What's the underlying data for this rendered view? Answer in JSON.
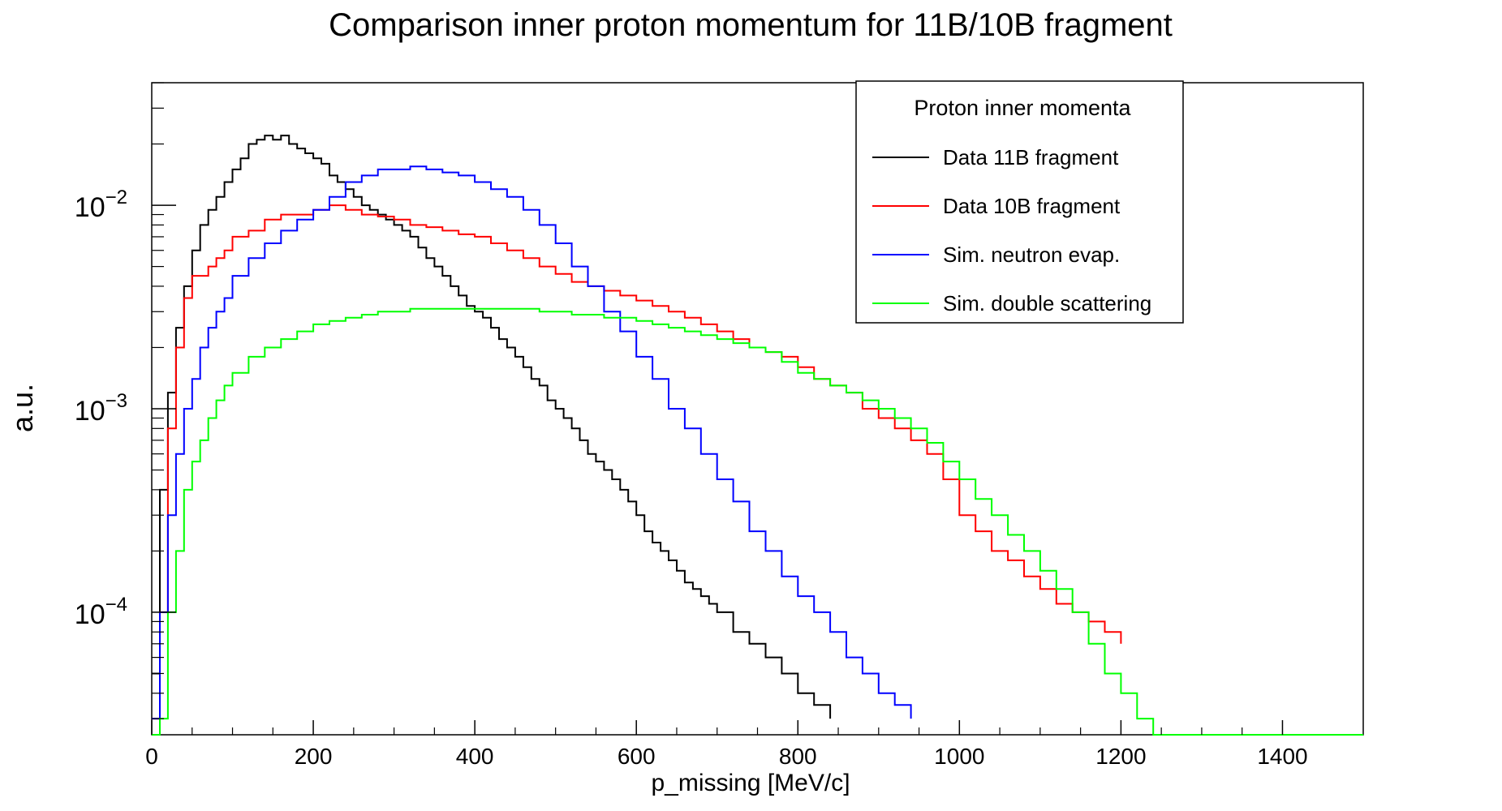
{
  "chart_data": {
    "type": "line",
    "title": "Comparison inner proton momentum for 11B/10B fragment",
    "xlabel": "p_missing [MeV/c]",
    "ylabel": "a.u.",
    "xlim": [
      0,
      1500
    ],
    "ylim": [
      2.5e-05,
      0.04
    ],
    "yscale": "log",
    "x_ticks": [
      0,
      200,
      400,
      600,
      800,
      1000,
      1200,
      1400
    ],
    "x_tick_labels": [
      "0",
      "200",
      "400",
      "600",
      "800",
      "1000",
      "1200",
      "1400"
    ],
    "y_ticks": [
      {
        "value": 0.01,
        "base": "10",
        "exp": "−2"
      },
      {
        "value": 0.001,
        "base": "10",
        "exp": "−3"
      },
      {
        "value": 0.0001,
        "base": "10",
        "exp": "−4"
      }
    ],
    "legend": {
      "title": "Proton inner momenta",
      "position": "top-right"
    },
    "series": [
      {
        "name": "Data 11B fragment",
        "color": "#000000",
        "points": [
          [
            0,
            5e-05
          ],
          [
            10,
            0.0004
          ],
          [
            20,
            0.0012
          ],
          [
            30,
            0.0025
          ],
          [
            40,
            0.004
          ],
          [
            50,
            0.006
          ],
          [
            60,
            0.008
          ],
          [
            70,
            0.0095
          ],
          [
            80,
            0.011
          ],
          [
            90,
            0.013
          ],
          [
            100,
            0.015
          ],
          [
            110,
            0.017
          ],
          [
            120,
            0.02
          ],
          [
            130,
            0.021
          ],
          [
            140,
            0.022
          ],
          [
            150,
            0.021
          ],
          [
            160,
            0.022
          ],
          [
            170,
            0.02
          ],
          [
            180,
            0.019
          ],
          [
            190,
            0.018
          ],
          [
            200,
            0.017
          ],
          [
            210,
            0.016
          ],
          [
            220,
            0.014
          ],
          [
            230,
            0.013
          ],
          [
            240,
            0.012
          ],
          [
            250,
            0.011
          ],
          [
            260,
            0.01
          ],
          [
            270,
            0.0095
          ],
          [
            280,
            0.009
          ],
          [
            290,
            0.0085
          ],
          [
            300,
            0.008
          ],
          [
            310,
            0.0075
          ],
          [
            320,
            0.007
          ],
          [
            330,
            0.0062
          ],
          [
            340,
            0.0055
          ],
          [
            350,
            0.005
          ],
          [
            360,
            0.0045
          ],
          [
            370,
            0.004
          ],
          [
            380,
            0.0036
          ],
          [
            390,
            0.0032
          ],
          [
            400,
            0.003
          ],
          [
            410,
            0.0028
          ],
          [
            420,
            0.0025
          ],
          [
            430,
            0.0022
          ],
          [
            440,
            0.002
          ],
          [
            450,
            0.0018
          ],
          [
            460,
            0.0016
          ],
          [
            470,
            0.0014
          ],
          [
            480,
            0.0013
          ],
          [
            490,
            0.0011
          ],
          [
            500,
            0.001
          ],
          [
            510,
            0.0009
          ],
          [
            520,
            0.0008
          ],
          [
            530,
            0.0007
          ],
          [
            540,
            0.0006
          ],
          [
            550,
            0.00055
          ],
          [
            560,
            0.0005
          ],
          [
            570,
            0.00045
          ],
          [
            580,
            0.0004
          ],
          [
            590,
            0.00035
          ],
          [
            600,
            0.0003
          ],
          [
            610,
            0.00025
          ],
          [
            620,
            0.00022
          ],
          [
            630,
            0.0002
          ],
          [
            640,
            0.00018
          ],
          [
            650,
            0.00016
          ],
          [
            660,
            0.00014
          ],
          [
            670,
            0.00013
          ],
          [
            680,
            0.00012
          ],
          [
            690,
            0.00011
          ],
          [
            700,
            0.0001
          ],
          [
            720,
            8e-05
          ],
          [
            740,
            7e-05
          ],
          [
            760,
            6e-05
          ],
          [
            780,
            5e-05
          ],
          [
            800,
            4e-05
          ],
          [
            820,
            3.5e-05
          ],
          [
            840,
            3e-05
          ]
        ]
      },
      {
        "name": "Data 10B fragment",
        "color": "#ff0000",
        "points": [
          [
            0,
            3e-05
          ],
          [
            10,
            0.0001
          ],
          [
            20,
            0.0008
          ],
          [
            30,
            0.002
          ],
          [
            40,
            0.0035
          ],
          [
            50,
            0.0045
          ],
          [
            60,
            0.0045
          ],
          [
            70,
            0.005
          ],
          [
            80,
            0.0055
          ],
          [
            90,
            0.006
          ],
          [
            100,
            0.007
          ],
          [
            120,
            0.0075
          ],
          [
            140,
            0.0085
          ],
          [
            160,
            0.009
          ],
          [
            180,
            0.009
          ],
          [
            200,
            0.0095
          ],
          [
            220,
            0.01
          ],
          [
            240,
            0.0095
          ],
          [
            260,
            0.009
          ],
          [
            280,
            0.0088
          ],
          [
            300,
            0.0085
          ],
          [
            320,
            0.008
          ],
          [
            340,
            0.0078
          ],
          [
            360,
            0.0075
          ],
          [
            380,
            0.0072
          ],
          [
            400,
            0.007
          ],
          [
            420,
            0.0065
          ],
          [
            440,
            0.006
          ],
          [
            460,
            0.0055
          ],
          [
            480,
            0.005
          ],
          [
            500,
            0.0046
          ],
          [
            520,
            0.0042
          ],
          [
            540,
            0.004
          ],
          [
            560,
            0.0038
          ],
          [
            580,
            0.0036
          ],
          [
            600,
            0.0034
          ],
          [
            620,
            0.0032
          ],
          [
            640,
            0.003
          ],
          [
            660,
            0.0028
          ],
          [
            680,
            0.0026
          ],
          [
            700,
            0.0024
          ],
          [
            720,
            0.0022
          ],
          [
            740,
            0.002
          ],
          [
            760,
            0.0019
          ],
          [
            780,
            0.0018
          ],
          [
            800,
            0.0016
          ],
          [
            820,
            0.0014
          ],
          [
            840,
            0.0013
          ],
          [
            860,
            0.0012
          ],
          [
            880,
            0.001
          ],
          [
            900,
            0.0009
          ],
          [
            920,
            0.0008
          ],
          [
            940,
            0.0007
          ],
          [
            960,
            0.0006
          ],
          [
            980,
            0.00045
          ],
          [
            1000,
            0.0003
          ],
          [
            1020,
            0.00025
          ],
          [
            1040,
            0.0002
          ],
          [
            1060,
            0.00018
          ],
          [
            1080,
            0.00015
          ],
          [
            1100,
            0.00013
          ],
          [
            1120,
            0.00011
          ],
          [
            1140,
            0.0001
          ],
          [
            1160,
            9e-05
          ],
          [
            1180,
            8e-05
          ],
          [
            1200,
            7e-05
          ]
        ]
      },
      {
        "name": "Sim. neutron evap.",
        "color": "#0000ff",
        "points": [
          [
            0,
            3e-05
          ],
          [
            10,
            0.0001
          ],
          [
            20,
            0.0003
          ],
          [
            30,
            0.0006
          ],
          [
            40,
            0.001
          ],
          [
            50,
            0.0014
          ],
          [
            60,
            0.002
          ],
          [
            70,
            0.0025
          ],
          [
            80,
            0.003
          ],
          [
            90,
            0.0035
          ],
          [
            100,
            0.0045
          ],
          [
            120,
            0.0055
          ],
          [
            140,
            0.0065
          ],
          [
            160,
            0.0075
          ],
          [
            180,
            0.0085
          ],
          [
            200,
            0.0095
          ],
          [
            220,
            0.011
          ],
          [
            240,
            0.013
          ],
          [
            260,
            0.014
          ],
          [
            280,
            0.015
          ],
          [
            300,
            0.015
          ],
          [
            320,
            0.0155
          ],
          [
            340,
            0.015
          ],
          [
            360,
            0.0145
          ],
          [
            380,
            0.014
          ],
          [
            400,
            0.013
          ],
          [
            420,
            0.012
          ],
          [
            440,
            0.011
          ],
          [
            460,
            0.0095
          ],
          [
            480,
            0.008
          ],
          [
            500,
            0.0065
          ],
          [
            520,
            0.005
          ],
          [
            540,
            0.004
          ],
          [
            560,
            0.003
          ],
          [
            580,
            0.0024
          ],
          [
            600,
            0.0018
          ],
          [
            620,
            0.0014
          ],
          [
            640,
            0.001
          ],
          [
            660,
            0.0008
          ],
          [
            680,
            0.0006
          ],
          [
            700,
            0.00045
          ],
          [
            720,
            0.00035
          ],
          [
            740,
            0.00025
          ],
          [
            760,
            0.0002
          ],
          [
            780,
            0.00015
          ],
          [
            800,
            0.00012
          ],
          [
            820,
            0.0001
          ],
          [
            840,
            8e-05
          ],
          [
            860,
            6e-05
          ],
          [
            880,
            5e-05
          ],
          [
            900,
            4e-05
          ],
          [
            920,
            3.5e-05
          ],
          [
            940,
            3e-05
          ]
        ]
      },
      {
        "name": "Sim. double scattering",
        "color": "#00ff00",
        "points": [
          [
            0,
            2.5e-05
          ],
          [
            10,
            3e-05
          ],
          [
            20,
            0.0001
          ],
          [
            30,
            0.0002
          ],
          [
            40,
            0.0004
          ],
          [
            50,
            0.00055
          ],
          [
            60,
            0.0007
          ],
          [
            70,
            0.0009
          ],
          [
            80,
            0.0011
          ],
          [
            90,
            0.0013
          ],
          [
            100,
            0.0015
          ],
          [
            120,
            0.0018
          ],
          [
            140,
            0.002
          ],
          [
            160,
            0.0022
          ],
          [
            180,
            0.0024
          ],
          [
            200,
            0.0026
          ],
          [
            220,
            0.0027
          ],
          [
            240,
            0.0028
          ],
          [
            260,
            0.0029
          ],
          [
            280,
            0.003
          ],
          [
            300,
            0.003
          ],
          [
            320,
            0.0031
          ],
          [
            340,
            0.0031
          ],
          [
            360,
            0.0031
          ],
          [
            380,
            0.0031
          ],
          [
            400,
            0.0031
          ],
          [
            420,
            0.0031
          ],
          [
            440,
            0.0031
          ],
          [
            460,
            0.0031
          ],
          [
            480,
            0.003
          ],
          [
            500,
            0.003
          ],
          [
            520,
            0.0029
          ],
          [
            540,
            0.0029
          ],
          [
            560,
            0.0028
          ],
          [
            580,
            0.0028
          ],
          [
            600,
            0.0027
          ],
          [
            620,
            0.0026
          ],
          [
            640,
            0.0025
          ],
          [
            660,
            0.0024
          ],
          [
            680,
            0.0023
          ],
          [
            700,
            0.0022
          ],
          [
            720,
            0.0021
          ],
          [
            740,
            0.002
          ],
          [
            760,
            0.0019
          ],
          [
            780,
            0.0017
          ],
          [
            800,
            0.0015
          ],
          [
            820,
            0.0014
          ],
          [
            840,
            0.0013
          ],
          [
            860,
            0.0012
          ],
          [
            880,
            0.0011
          ],
          [
            900,
            0.001
          ],
          [
            920,
            0.0009
          ],
          [
            940,
            0.0008
          ],
          [
            960,
            0.00068
          ],
          [
            980,
            0.00055
          ],
          [
            1000,
            0.00045
          ],
          [
            1020,
            0.00036
          ],
          [
            1040,
            0.0003
          ],
          [
            1060,
            0.00024
          ],
          [
            1080,
            0.0002
          ],
          [
            1100,
            0.00016
          ],
          [
            1120,
            0.00013
          ],
          [
            1140,
            0.0001
          ],
          [
            1160,
            7e-05
          ],
          [
            1180,
            5e-05
          ],
          [
            1200,
            4e-05
          ],
          [
            1220,
            3e-05
          ],
          [
            1240,
            2.5e-05
          ],
          [
            1500,
            2.5e-05
          ]
        ]
      }
    ]
  }
}
